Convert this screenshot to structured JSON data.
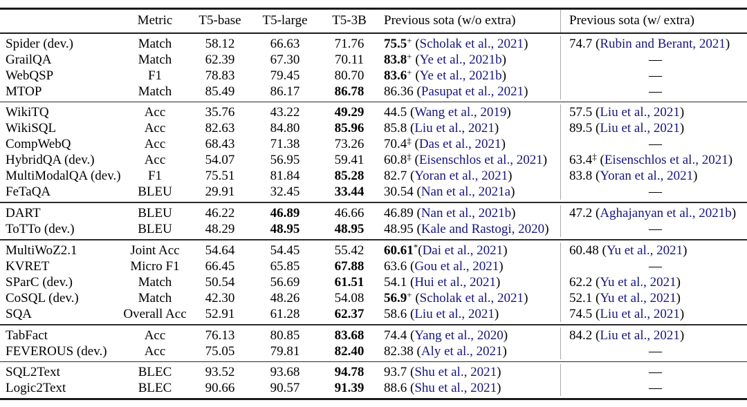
{
  "table": {
    "dash": "—",
    "colors": {
      "citation": "#15157e",
      "rule": "#1b1b1b",
      "divider": "#a9a9a9",
      "background": "#ffffff",
      "text": "#000000"
    },
    "header": {
      "task": "",
      "metric": "Metric",
      "t5_base": "T5-base",
      "t5_large": "T5-large",
      "t5_3b": "T5-3B",
      "sota_wo": "Previous sota (w/o extra)",
      "sota_w": "Previous sota (w/ extra)"
    },
    "groups": [
      {
        "rows": [
          {
            "task": "Spider (dev.)",
            "metric": "Match",
            "t5_base": {
              "v": "58.12"
            },
            "t5_large": {
              "v": "66.63"
            },
            "t5_3b": {
              "v": "71.76"
            },
            "sota_wo": {
              "v": "75.5",
              "sup": "+",
              "bold": true,
              "cite": "Scholak et al., 2021"
            },
            "sota_w": {
              "v": "74.7",
              "cite": "Rubin and Berant, 2021"
            }
          },
          {
            "task": "GrailQA",
            "metric": "Match",
            "t5_base": {
              "v": "62.39"
            },
            "t5_large": {
              "v": "67.30"
            },
            "t5_3b": {
              "v": "70.11"
            },
            "sota_wo": {
              "v": "83.8",
              "sup": "+",
              "bold": true,
              "cite": "Ye et al., 2021b"
            },
            "sota_w": {
              "dash": true
            }
          },
          {
            "task": "WebQSP",
            "metric": "F1",
            "t5_base": {
              "v": "78.83"
            },
            "t5_large": {
              "v": "79.45"
            },
            "t5_3b": {
              "v": "80.70"
            },
            "sota_wo": {
              "v": "83.6",
              "sup": "+",
              "bold": true,
              "cite": "Ye et al., 2021b"
            },
            "sota_w": {
              "dash": true
            }
          },
          {
            "task": "MTOP",
            "metric": "Match",
            "t5_base": {
              "v": "85.49"
            },
            "t5_large": {
              "v": "86.17"
            },
            "t5_3b": {
              "v": "86.78",
              "bold": true
            },
            "sota_wo": {
              "v": "86.36",
              "cite": "Pasupat et al., 2021"
            },
            "sota_w": {
              "dash": true
            }
          }
        ]
      },
      {
        "rows": [
          {
            "task": "WikiTQ",
            "metric": "Acc",
            "t5_base": {
              "v": "35.76"
            },
            "t5_large": {
              "v": "43.22"
            },
            "t5_3b": {
              "v": "49.29",
              "bold": true
            },
            "sota_wo": {
              "v": "44.5",
              "cite": "Wang et al., 2019"
            },
            "sota_w": {
              "v": "57.5",
              "cite": "Liu et al., 2021"
            }
          },
          {
            "task": "WikiSQL",
            "metric": "Acc",
            "t5_base": {
              "v": "82.63"
            },
            "t5_large": {
              "v": "84.80"
            },
            "t5_3b": {
              "v": "85.96",
              "bold": true
            },
            "sota_wo": {
              "v": "85.8",
              "cite": "Liu et al., 2021"
            },
            "sota_w": {
              "v": "89.5",
              "cite": "Liu et al., 2021"
            }
          },
          {
            "task": "CompWebQ",
            "metric": "Acc",
            "t5_base": {
              "v": "68.43"
            },
            "t5_large": {
              "v": "71.38"
            },
            "t5_3b": {
              "v": "73.26"
            },
            "sota_wo": {
              "v": "70.4",
              "sup": "‡",
              "cite": "Das et al., 2021"
            },
            "sota_w": {
              "dash": true
            }
          },
          {
            "task": "HybridQA (dev.)",
            "metric": "Acc",
            "t5_base": {
              "v": "54.07"
            },
            "t5_large": {
              "v": "56.95"
            },
            "t5_3b": {
              "v": "59.41"
            },
            "sota_wo": {
              "v": "60.8",
              "sup": "‡",
              "cite": "Eisenschlos et al., 2021"
            },
            "sota_w": {
              "v": "63.4",
              "sup": "‡",
              "cite": "Eisenschlos et al., 2021"
            }
          },
          {
            "task": "MultiModalQA (dev.)",
            "metric": "F1",
            "t5_base": {
              "v": "75.51"
            },
            "t5_large": {
              "v": "81.84"
            },
            "t5_3b": {
              "v": "85.28",
              "bold": true
            },
            "sota_wo": {
              "v": "82.7",
              "cite": "Yoran et al., 2021"
            },
            "sota_w": {
              "v": "83.8",
              "cite": "Yoran et al., 2021"
            }
          },
          {
            "task": "FeTaQA",
            "metric": "BLEU",
            "t5_base": {
              "v": "29.91"
            },
            "t5_large": {
              "v": "32.45"
            },
            "t5_3b": {
              "v": "33.44",
              "bold": true
            },
            "sota_wo": {
              "v": "30.54",
              "cite": "Nan et al., 2021a"
            },
            "sota_w": {
              "dash": true
            }
          }
        ]
      },
      {
        "rows": [
          {
            "task": "DART",
            "metric": "BLEU",
            "t5_base": {
              "v": "46.22"
            },
            "t5_large": {
              "v": "46.89",
              "bold": true
            },
            "t5_3b": {
              "v": "46.66"
            },
            "sota_wo": {
              "v": "46.89",
              "cite": "Nan et al., 2021b"
            },
            "sota_w": {
              "v": "47.2",
              "cite": "Aghajanyan et al., 2021b"
            }
          },
          {
            "task": "ToTTo (dev.)",
            "metric": "BLEU",
            "t5_base": {
              "v": "48.29"
            },
            "t5_large": {
              "v": "48.95",
              "bold": true
            },
            "t5_3b": {
              "v": "48.95",
              "bold": true
            },
            "sota_wo": {
              "v": "48.95",
              "cite": "Kale and Rastogi, 2020"
            },
            "sota_w": {
              "dash": true
            }
          }
        ]
      },
      {
        "rows": [
          {
            "task": "MultiWoZ2.1",
            "metric": "Joint Acc",
            "t5_base": {
              "v": "54.64"
            },
            "t5_large": {
              "v": "54.45"
            },
            "t5_3b": {
              "v": "55.42"
            },
            "sota_wo": {
              "v": "60.61",
              "sup": "*",
              "bold": true,
              "tight": true,
              "cite": "Dai et al., 2021"
            },
            "sota_w": {
              "v": "60.48",
              "cite": "Yu et al., 2021"
            }
          },
          {
            "task": "KVRET",
            "metric": "Micro F1",
            "t5_base": {
              "v": "66.45"
            },
            "t5_large": {
              "v": "65.85"
            },
            "t5_3b": {
              "v": "67.88",
              "bold": true
            },
            "sota_wo": {
              "v": "63.6",
              "cite": "Gou et al., 2021"
            },
            "sota_w": {
              "dash": true
            }
          },
          {
            "task": "SParC (dev.)",
            "metric": "Match",
            "t5_base": {
              "v": "50.54"
            },
            "t5_large": {
              "v": "56.69"
            },
            "t5_3b": {
              "v": "61.51",
              "bold": true
            },
            "sota_wo": {
              "v": "54.1",
              "cite": "Hui et al., 2021"
            },
            "sota_w": {
              "v": "62.2",
              "cite": "Yu et al., 2021"
            }
          },
          {
            "task": "CoSQL (dev.)",
            "metric": "Match",
            "t5_base": {
              "v": "42.30"
            },
            "t5_large": {
              "v": "48.26"
            },
            "t5_3b": {
              "v": "54.08"
            },
            "sota_wo": {
              "v": "56.9",
              "sup": "+",
              "bold": true,
              "cite": "Scholak et al., 2021"
            },
            "sota_w": {
              "v": "52.1",
              "cite": "Yu et al., 2021"
            }
          },
          {
            "task": "SQA",
            "metric": "Overall Acc",
            "t5_base": {
              "v": "52.91"
            },
            "t5_large": {
              "v": "61.28"
            },
            "t5_3b": {
              "v": "62.37",
              "bold": true
            },
            "sota_wo": {
              "v": "58.6",
              "cite": "Liu et al., 2021"
            },
            "sota_w": {
              "v": "74.5",
              "cite": "Liu et al., 2021"
            }
          }
        ]
      },
      {
        "rows": [
          {
            "task": "TabFact",
            "metric": "Acc",
            "t5_base": {
              "v": "76.13"
            },
            "t5_large": {
              "v": "80.85"
            },
            "t5_3b": {
              "v": "83.68",
              "bold": true
            },
            "sota_wo": {
              "v": "74.4",
              "cite": "Yang et al., 2020"
            },
            "sota_w": {
              "v": "84.2",
              "cite": "Liu et al., 2021"
            }
          },
          {
            "task": "FEVEROUS (dev.)",
            "metric": "Acc",
            "t5_base": {
              "v": "75.05"
            },
            "t5_large": {
              "v": "79.81"
            },
            "t5_3b": {
              "v": "82.40",
              "bold": true
            },
            "sota_wo": {
              "v": "82.38",
              "cite": "Aly et al., 2021"
            },
            "sota_w": {
              "dash": true
            }
          }
        ]
      },
      {
        "rows": [
          {
            "task": "SQL2Text",
            "metric": "BLEC",
            "t5_base": {
              "v": "93.52"
            },
            "t5_large": {
              "v": "93.68"
            },
            "t5_3b": {
              "v": "94.78",
              "bold": true
            },
            "sota_wo": {
              "v": "93.7",
              "cite": "Shu et al., 2021"
            },
            "sota_w": {
              "dash": true
            }
          },
          {
            "task": "Logic2Text",
            "metric": "BLEC",
            "t5_base": {
              "v": "90.66"
            },
            "t5_large": {
              "v": "90.57"
            },
            "t5_3b": {
              "v": "91.39",
              "bold": true
            },
            "sota_wo": {
              "v": "88.6",
              "cite": "Shu et al., 2021"
            },
            "sota_w": {
              "dash": true
            }
          }
        ]
      }
    ]
  }
}
